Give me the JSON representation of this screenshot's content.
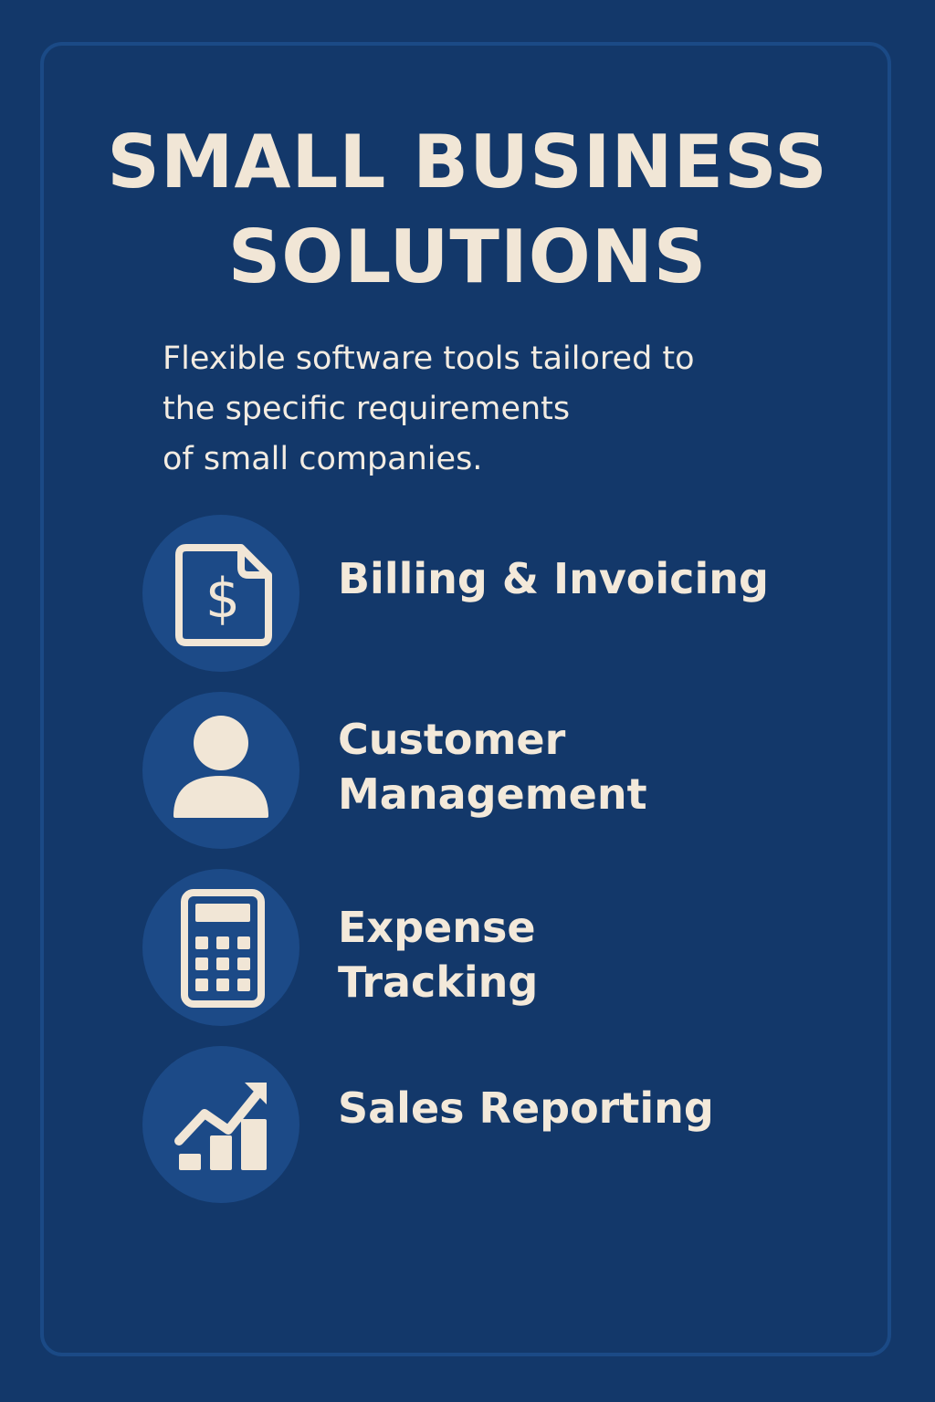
{
  "header": {
    "title_lines": [
      "SMALL BUSINESS",
      "SOLUTIONS"
    ],
    "subtitle_lines": [
      "Flexible software tools tailored to",
      "the specific requirements",
      "of small companies."
    ]
  },
  "colors": {
    "background": "#13386a",
    "border": "#1b4a86",
    "icon_circle": "#1c4a87",
    "text": "#f1e6d6"
  },
  "features": [
    {
      "icon": "invoice-dollar-icon",
      "label_lines": [
        "Billing & Invoicing"
      ]
    },
    {
      "icon": "user-icon",
      "label_lines": [
        "Customer",
        "Management"
      ]
    },
    {
      "icon": "calculator-icon",
      "label_lines": [
        "Expense",
        "Tracking"
      ]
    },
    {
      "icon": "sales-chart-icon",
      "label_lines": [
        "Sales Reporting"
      ]
    }
  ]
}
